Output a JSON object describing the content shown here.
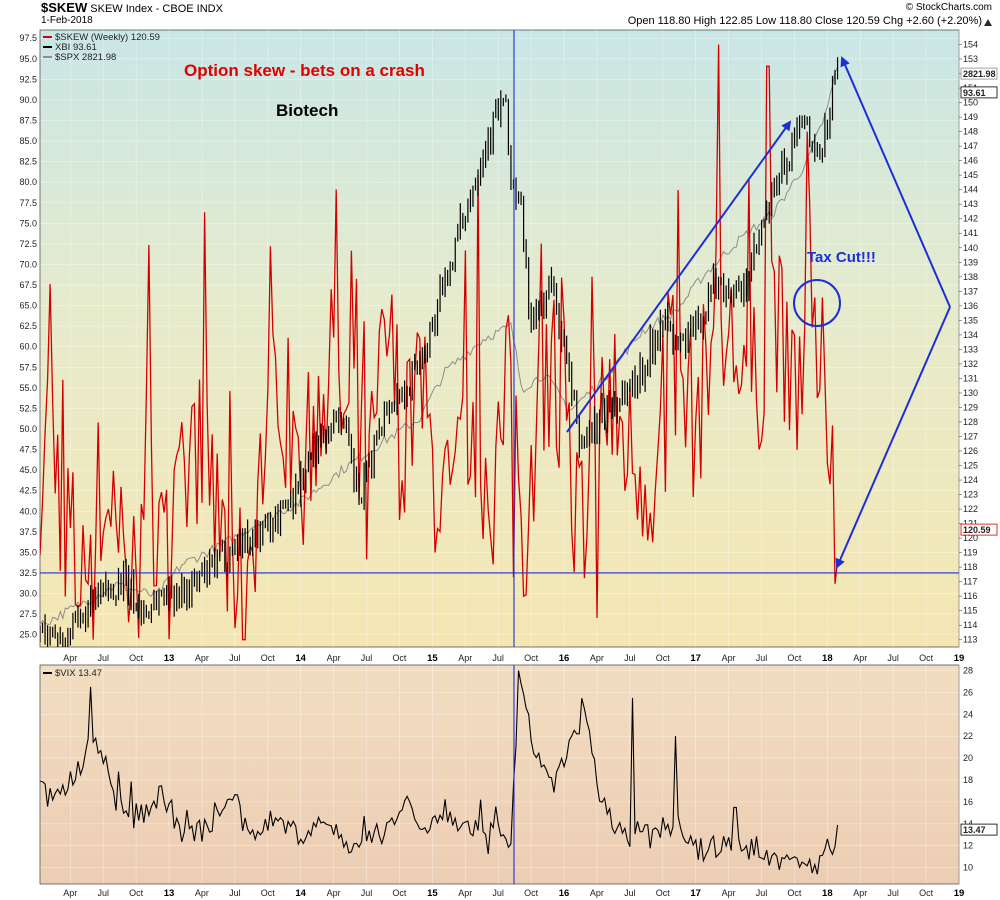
{
  "header": {
    "symbol": "$SKEW",
    "name": "SKEW Index - CBOE INDX",
    "date": "1-Feb-2018",
    "watermark": "© StockCharts.com",
    "quote": "Open 118.80  High 122.85  Low 118.80  Close 120.59  Chg +2.60 (+2.20%)",
    "quote_icon": "triangle-up-icon"
  },
  "legend": {
    "skew": "$SKEW (Weekly) 120.59",
    "xbi": "XBI 93.61",
    "spx": "$SPX 2821.98",
    "vix": "$VIX 13.47"
  },
  "annotations": {
    "title": "Option skew - bets on a crash",
    "biotech": "Biotech",
    "tax_cut": "Tax Cut!!!"
  },
  "colors": {
    "skew": "#d40000",
    "xbi": "#000000",
    "spx": "#8c8c8c",
    "annotation_blue": "#1c2fd6",
    "title_red": "#e00000"
  },
  "x_axis": {
    "ticks": [
      {
        "label": "Apr",
        "t": 2012.25,
        "bold": false
      },
      {
        "label": "Jul",
        "t": 2012.5,
        "bold": false
      },
      {
        "label": "Oct",
        "t": 2012.75,
        "bold": false
      },
      {
        "label": "13",
        "t": 2013.0,
        "bold": true
      },
      {
        "label": "Apr",
        "t": 2013.25,
        "bold": false
      },
      {
        "label": "Jul",
        "t": 2013.5,
        "bold": false
      },
      {
        "label": "Oct",
        "t": 2013.75,
        "bold": false
      },
      {
        "label": "14",
        "t": 2014.0,
        "bold": true
      },
      {
        "label": "Apr",
        "t": 2014.25,
        "bold": false
      },
      {
        "label": "Jul",
        "t": 2014.5,
        "bold": false
      },
      {
        "label": "Oct",
        "t": 2014.75,
        "bold": false
      },
      {
        "label": "15",
        "t": 2015.0,
        "bold": true
      },
      {
        "label": "Apr",
        "t": 2015.25,
        "bold": false
      },
      {
        "label": "Jul",
        "t": 2015.5,
        "bold": false
      },
      {
        "label": "Oct",
        "t": 2015.75,
        "bold": false
      },
      {
        "label": "16",
        "t": 2016.0,
        "bold": true
      },
      {
        "label": "Apr",
        "t": 2016.25,
        "bold": false
      },
      {
        "label": "Jul",
        "t": 2016.5,
        "bold": false
      },
      {
        "label": "Oct",
        "t": 2016.75,
        "bold": false
      },
      {
        "label": "17",
        "t": 2017.0,
        "bold": true
      },
      {
        "label": "Apr",
        "t": 2017.25,
        "bold": false
      },
      {
        "label": "Jul",
        "t": 2017.5,
        "bold": false
      },
      {
        "label": "Oct",
        "t": 2017.75,
        "bold": false
      },
      {
        "label": "18",
        "t": 2018.0,
        "bold": true
      },
      {
        "label": "Apr",
        "t": 2018.25,
        "bold": false
      },
      {
        "label": "Jul",
        "t": 2018.5,
        "bold": false
      },
      {
        "label": "Oct",
        "t": 2018.75,
        "bold": false
      },
      {
        "label": "19",
        "t": 2019.0,
        "bold": true
      }
    ],
    "range": [
      2012.02,
      2019.0
    ],
    "vertical_markers": [
      2015.62
    ]
  },
  "main_panel": {
    "left_axis": {
      "range": [
        23.5,
        98.5
      ],
      "ticks": [
        "25.0",
        "27.5",
        "30.0",
        "32.5",
        "35.0",
        "37.5",
        "40.0",
        "42.5",
        "45.0",
        "47.5",
        "50.0",
        "52.5",
        "55.0",
        "57.5",
        "60.0",
        "62.5",
        "65.0",
        "67.5",
        "70.0",
        "72.5",
        "75.0",
        "77.5",
        "80.0",
        "82.5",
        "85.0",
        "87.5",
        "90.0",
        "92.5",
        "95.0",
        "97.5"
      ]
    },
    "right_axis": {
      "range": [
        112.5,
        155.0
      ],
      "ticks": [
        "113",
        "114",
        "115",
        "116",
        "117",
        "118",
        "119",
        "120",
        "121",
        "122",
        "123",
        "124",
        "125",
        "126",
        "127",
        "128",
        "129",
        "130",
        "131",
        "132",
        "133",
        "134",
        "135",
        "136",
        "137",
        "138",
        "139",
        "140",
        "141",
        "142",
        "143",
        "144",
        "145",
        "146",
        "147",
        "148",
        "149",
        "150",
        "151",
        "152",
        "153",
        "154"
      ],
      "value_tags": [
        {
          "value": "2821.98",
          "level": 152.0,
          "color": "#8c8c8c"
        },
        {
          "value": "93.61",
          "level": 150.7,
          "color": "#000000"
        },
        {
          "value": "120.59",
          "level": 120.59,
          "color": "#d40000"
        }
      ]
    },
    "horizontal_marker": 32.5
  },
  "vix_panel": {
    "range": [
      8.5,
      28.5
    ],
    "ticks": [
      "10",
      "12",
      "14",
      "16",
      "18",
      "20",
      "22",
      "24",
      "26",
      "28"
    ],
    "value_tag": {
      "value": "13.47",
      "level": 13.47
    }
  },
  "chart_data": [
    {
      "type": "line",
      "panel": "main",
      "x_range": [
        2012.02,
        2019.0
      ],
      "series": [
        {
          "name": "$SKEW (Weekly) 120.59",
          "axis": "right",
          "color": "#d40000",
          "kind": "volatile",
          "anchors": [
            [
              2012.02,
              125
            ],
            [
              2012.1,
              129
            ],
            [
              2012.2,
              121
            ],
            [
              2012.3,
              117
            ],
            [
              2012.5,
              123
            ],
            [
              2012.7,
              116
            ],
            [
              2012.85,
              124
            ],
            [
              2013.0,
              118
            ],
            [
              2013.2,
              127
            ],
            [
              2013.4,
              120
            ],
            [
              2013.55,
              115
            ],
            [
              2013.7,
              125
            ],
            [
              2013.85,
              131
            ],
            [
              2014.0,
              124
            ],
            [
              2014.2,
              132
            ],
            [
              2014.35,
              128
            ],
            [
              2014.5,
              122
            ],
            [
              2014.65,
              134
            ],
            [
              2014.8,
              127
            ],
            [
              2014.9,
              131
            ],
            [
              2015.0,
              125
            ],
            [
              2015.15,
              121
            ],
            [
              2015.3,
              129
            ],
            [
              2015.45,
              123
            ],
            [
              2015.6,
              131
            ],
            [
              2015.7,
              120
            ],
            [
              2015.85,
              134
            ],
            [
              2016.0,
              125
            ],
            [
              2016.12,
              121
            ],
            [
              2016.3,
              130
            ],
            [
              2016.5,
              126
            ],
            [
              2016.7,
              124
            ],
            [
              2016.85,
              132
            ],
            [
              2017.0,
              128
            ],
            [
              2017.15,
              134
            ],
            [
              2017.3,
              133
            ],
            [
              2017.45,
              130
            ],
            [
              2017.6,
              137
            ],
            [
              2017.7,
              130
            ],
            [
              2017.8,
              131
            ],
            [
              2017.9,
              132
            ],
            [
              2018.0,
              130
            ],
            [
              2018.04,
              125
            ],
            [
              2018.06,
              121
            ],
            [
              2018.08,
              118
            ],
            [
              2018.09,
              120.59
            ]
          ],
          "events": [
            [
              2012.1,
              137.5
            ],
            [
              2013.5,
              113.8
            ],
            [
              2015.62,
              117.3
            ],
            [
              2015.69,
              116
            ],
            [
              2016.25,
              114.5
            ],
            [
              2017.18,
              154
            ],
            [
              2017.55,
              152.5
            ],
            [
              2017.85,
              148
            ]
          ]
        },
        {
          "name": "XBI 93.61",
          "axis": "left",
          "color": "#000000",
          "kind": "bars",
          "anchors": [
            [
              2012.02,
              25.5
            ],
            [
              2012.2,
              24.5
            ],
            [
              2012.35,
              27
            ],
            [
              2012.5,
              30
            ],
            [
              2012.65,
              31.5
            ],
            [
              2012.8,
              27.5
            ],
            [
              2012.95,
              30
            ],
            [
              2013.15,
              30.5
            ],
            [
              2013.35,
              33.5
            ],
            [
              2013.5,
              36
            ],
            [
              2013.75,
              38
            ],
            [
              2013.95,
              42
            ],
            [
              2014.15,
              49
            ],
            [
              2014.3,
              52
            ],
            [
              2014.45,
              41
            ],
            [
              2014.62,
              52
            ],
            [
              2014.8,
              55
            ],
            [
              2014.95,
              60
            ],
            [
              2015.1,
              68
            ],
            [
              2015.22,
              75
            ],
            [
              2015.35,
              82
            ],
            [
              2015.48,
              88
            ],
            [
              2015.55,
              90
            ],
            [
              2015.6,
              80
            ],
            [
              2015.68,
              76
            ],
            [
              2015.75,
              62
            ],
            [
              2015.9,
              68
            ],
            [
              2016.0,
              60
            ],
            [
              2016.12,
              48
            ],
            [
              2016.3,
              52
            ],
            [
              2016.5,
              55
            ],
            [
              2016.62,
              58
            ],
            [
              2016.75,
              64
            ],
            [
              2016.85,
              60
            ],
            [
              2017.0,
              62
            ],
            [
              2017.15,
              68
            ],
            [
              2017.35,
              66
            ],
            [
              2017.52,
              75
            ],
            [
              2017.62,
              80
            ],
            [
              2017.75,
              85
            ],
            [
              2017.83,
              88
            ],
            [
              2017.9,
              82
            ],
            [
              2017.96,
              85
            ],
            [
              2018.02,
              89
            ],
            [
              2018.07,
              95
            ],
            [
              2018.09,
              93.61
            ]
          ]
        },
        {
          "name": "$SPX 2821.98",
          "axis": "right",
          "color": "#8c8c8c",
          "kind": "smooth",
          "anchors": [
            [
              2012.02,
              114
            ],
            [
              2012.3,
              115.3
            ],
            [
              2012.6,
              116.8
            ],
            [
              2012.9,
              116
            ],
            [
              2013.1,
              118.2
            ],
            [
              2013.4,
              119.5
            ],
            [
              2013.7,
              121.2
            ],
            [
              2014.0,
              122.5
            ],
            [
              2014.3,
              124.6
            ],
            [
              2014.6,
              126.5
            ],
            [
              2014.9,
              128.2
            ],
            [
              2015.1,
              131.5
            ],
            [
              2015.4,
              133.8
            ],
            [
              2015.6,
              134.6
            ],
            [
              2015.68,
              130.3
            ],
            [
              2015.85,
              131.3
            ],
            [
              2016.05,
              128.8
            ],
            [
              2016.3,
              131
            ],
            [
              2016.6,
              134.3
            ],
            [
              2016.85,
              135.6
            ],
            [
              2017.05,
              138
            ],
            [
              2017.3,
              140.3
            ],
            [
              2017.6,
              142.5
            ],
            [
              2017.85,
              146
            ],
            [
              2018.0,
              149.5
            ],
            [
              2018.07,
              152.5
            ],
            [
              2018.09,
              152
            ]
          ]
        }
      ]
    },
    {
      "type": "line",
      "panel": "vix",
      "x_range": [
        2012.02,
        2019.0
      ],
      "series": [
        {
          "name": "$VIX 13.47",
          "axis": "right",
          "color": "#000000",
          "kind": "volatile",
          "anchors": [
            [
              2012.02,
              17
            ],
            [
              2012.15,
              16
            ],
            [
              2012.3,
              19
            ],
            [
              2012.45,
              22
            ],
            [
              2012.6,
              16
            ],
            [
              2012.8,
              15
            ],
            [
              2012.95,
              17
            ],
            [
              2013.1,
              13
            ],
            [
              2013.3,
              13.5
            ],
            [
              2013.45,
              17
            ],
            [
              2013.6,
              13
            ],
            [
              2013.8,
              14.5
            ],
            [
              2014.0,
              13
            ],
            [
              2014.2,
              14
            ],
            [
              2014.4,
              12
            ],
            [
              2014.6,
              13
            ],
            [
              2014.8,
              16
            ],
            [
              2014.95,
              14
            ],
            [
              2015.1,
              15
            ],
            [
              2015.3,
              13
            ],
            [
              2015.5,
              13
            ],
            [
              2015.6,
              12.5
            ],
            [
              2015.65,
              27
            ],
            [
              2015.75,
              22
            ],
            [
              2015.9,
              17
            ],
            [
              2016.05,
              21
            ],
            [
              2016.15,
              24
            ],
            [
              2016.3,
              15
            ],
            [
              2016.5,
              13
            ],
            [
              2016.7,
              13.5
            ],
            [
              2016.85,
              14
            ],
            [
              2017.0,
              11.5
            ],
            [
              2017.2,
              12
            ],
            [
              2017.35,
              12
            ],
            [
              2017.55,
              11
            ],
            [
              2017.7,
              10.5
            ],
            [
              2017.85,
              10
            ],
            [
              2017.95,
              10.5
            ],
            [
              2018.03,
              11
            ],
            [
              2018.09,
              13.47
            ]
          ],
          "events": [
            [
              2012.4,
              26.5
            ],
            [
              2015.65,
              28
            ],
            [
              2016.15,
              24.5
            ],
            [
              2016.52,
              25.5
            ],
            [
              2016.85,
              22
            ],
            [
              2017.3,
              15.5
            ]
          ]
        }
      ]
    }
  ]
}
